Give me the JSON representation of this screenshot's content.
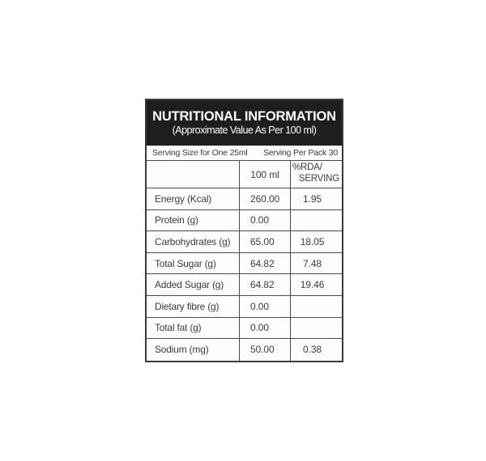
{
  "colors": {
    "header_bg": "#1e1e1c",
    "header_text": "#ffffff",
    "body_text": "#3c3c3b",
    "border": "#4b4b4a",
    "page_bg": "#ffffff"
  },
  "table": {
    "header": {
      "title": "NUTRITIONAL INFORMATION",
      "subtitle": "(Approximate Value As Per 100 ml)"
    },
    "serving_row": {
      "left": "Serving Size for One 25ml",
      "right": "Serving Per Pack 30"
    },
    "columns": {
      "col1": "",
      "col2": "100 ml",
      "col3_line1": "%RDA/",
      "col3_line2": "SERVING"
    },
    "rows": [
      {
        "label": "Energy (Kcal)",
        "value": "260.00",
        "rda": "1.95"
      },
      {
        "label": "Protein (g)",
        "value": "0.00",
        "rda": ""
      },
      {
        "label": "Carbohydrates (g)",
        "value": "65.00",
        "rda": "18.05"
      },
      {
        "label": "Total Sugar (g)",
        "value": "64.82",
        "rda": "7.48"
      },
      {
        "label": "Added Sugar (g)",
        "value": "64.82",
        "rda": "19.46"
      },
      {
        "label": "Dietary fibre (g)",
        "value": "0.00",
        "rda": ""
      },
      {
        "label": "Total fat (g)",
        "value": "0.00",
        "rda": ""
      },
      {
        "label": "Sodium (mg)",
        "value": "50.00",
        "rda": "0.38"
      }
    ]
  }
}
